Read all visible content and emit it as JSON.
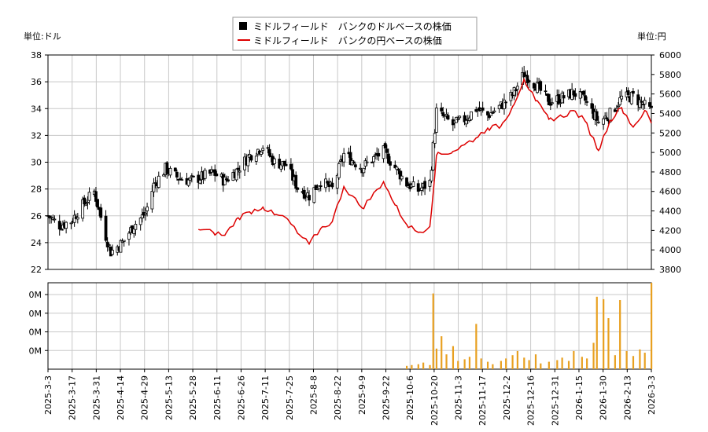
{
  "chart_data": [
    {
      "type": "candlestick",
      "legend": [
        {
          "label": "ミドルフィールド　バンクのドルベースの株価",
          "marker": "square",
          "color": "#000000"
        },
        {
          "label": "ミドルフィールド　バンクの円ベースの株価",
          "marker": "line",
          "color": "#dd0000"
        }
      ],
      "legend_position": "top-center",
      "y_left_unit": "単位:ドル",
      "y_right_unit": "単位:円",
      "y_left_range": [
        22,
        38
      ],
      "y_left_ticks": [
        "22",
        "24",
        "26",
        "28",
        "30",
        "32",
        "34",
        "36",
        "38"
      ],
      "y_right_range": [
        3800,
        6000
      ],
      "y_right_ticks": [
        "3800",
        "4000",
        "4200",
        "4400",
        "4600",
        "4800",
        "5000",
        "5200",
        "5400",
        "5600",
        "5800",
        "6000"
      ],
      "grid": true,
      "x_range": [
        "2025-03-03",
        "2026-03-03"
      ],
      "x_ticks": [
        "2025-3-3",
        "2025-3-17",
        "2025-3-31",
        "2025-4-14",
        "2025-4-29",
        "2025-5-13",
        "2025-5-28",
        "2025-6-11",
        "2025-6-26",
        "2025-7-11",
        "2025-7-25",
        "2025-8-8",
        "2025-8-22",
        "2025-9-9",
        "2025-9-22",
        "2025-10-6",
        "2025-10-20",
        "2025-11-3",
        "2025-11-17",
        "2025-12-2",
        "2025-12-16",
        "2025-12-31",
        "2026-1-15",
        "2026-1-30",
        "2026-2-13",
        "2026-3-3"
      ],
      "price_usd_close": [
        [
          "2025-03-03",
          26.0
        ],
        [
          "2025-03-10",
          25.3
        ],
        [
          "2025-03-17",
          25.6
        ],
        [
          "2025-03-24",
          26.8
        ],
        [
          "2025-03-31",
          27.8
        ],
        [
          "2025-04-07",
          24.5
        ],
        [
          "2025-04-10",
          23.3
        ],
        [
          "2025-04-17",
          24.0
        ],
        [
          "2025-04-24",
          25.3
        ],
        [
          "2025-05-01",
          26.2
        ],
        [
          "2025-05-06",
          28.3
        ],
        [
          "2025-05-13",
          29.5
        ],
        [
          "2025-05-20",
          28.9
        ],
        [
          "2025-05-28",
          28.6
        ],
        [
          "2025-06-04",
          28.9
        ],
        [
          "2025-06-11",
          29.2
        ],
        [
          "2025-06-18",
          28.6
        ],
        [
          "2025-06-26",
          29.5
        ],
        [
          "2025-07-03",
          30.5
        ],
        [
          "2025-07-11",
          31.2
        ],
        [
          "2025-07-18",
          30.0
        ],
        [
          "2025-07-25",
          29.8
        ],
        [
          "2025-08-01",
          28.1
        ],
        [
          "2025-08-08",
          27.5
        ],
        [
          "2025-08-15",
          28.6
        ],
        [
          "2025-08-22",
          28.0
        ],
        [
          "2025-08-29",
          30.6
        ],
        [
          "2025-09-09",
          29.6
        ],
        [
          "2025-09-15",
          30.2
        ],
        [
          "2025-09-22",
          30.8
        ],
        [
          "2025-09-29",
          29.6
        ],
        [
          "2025-10-06",
          28.4
        ],
        [
          "2025-10-13",
          27.9
        ],
        [
          "2025-10-20",
          28.5
        ],
        [
          "2025-10-24",
          33.8
        ],
        [
          "2025-11-03",
          32.8
        ],
        [
          "2025-11-10",
          33.2
        ],
        [
          "2025-11-17",
          34.0
        ],
        [
          "2025-11-24",
          33.5
        ],
        [
          "2025-12-02",
          34.2
        ],
        [
          "2025-12-09",
          35.0
        ],
        [
          "2025-12-16",
          36.6
        ],
        [
          "2025-12-23",
          35.8
        ],
        [
          "2025-12-31",
          34.5
        ],
        [
          "2026-01-08",
          34.8
        ],
        [
          "2026-01-15",
          35.2
        ],
        [
          "2026-01-22",
          34.6
        ],
        [
          "2026-01-30",
          33.0
        ],
        [
          "2026-02-06",
          33.6
        ],
        [
          "2026-02-13",
          34.8
        ],
        [
          "2026-02-20",
          34.9
        ],
        [
          "2026-02-27",
          34.2
        ],
        [
          "2026-03-03",
          33.8
        ]
      ],
      "price_jpy": [
        [
          "2025-06-02",
          4210
        ],
        [
          "2025-06-11",
          4180
        ],
        [
          "2025-06-18",
          4150
        ],
        [
          "2025-06-26",
          4330
        ],
        [
          "2025-07-03",
          4390
        ],
        [
          "2025-07-11",
          4440
        ],
        [
          "2025-07-18",
          4360
        ],
        [
          "2025-07-25",
          4330
        ],
        [
          "2025-08-01",
          4170
        ],
        [
          "2025-08-08",
          4060
        ],
        [
          "2025-08-15",
          4220
        ],
        [
          "2025-08-22",
          4290
        ],
        [
          "2025-08-29",
          4650
        ],
        [
          "2025-09-09",
          4430
        ],
        [
          "2025-09-15",
          4550
        ],
        [
          "2025-09-22",
          4700
        ],
        [
          "2025-09-29",
          4460
        ],
        [
          "2025-10-06",
          4260
        ],
        [
          "2025-10-13",
          4180
        ],
        [
          "2025-10-20",
          4240
        ],
        [
          "2025-10-24",
          4970
        ],
        [
          "2025-11-03",
          5010
        ],
        [
          "2025-11-10",
          5080
        ],
        [
          "2025-11-17",
          5150
        ],
        [
          "2025-11-24",
          5250
        ],
        [
          "2025-12-02",
          5270
        ],
        [
          "2025-12-09",
          5470
        ],
        [
          "2025-12-16",
          5750
        ],
        [
          "2025-12-23",
          5530
        ],
        [
          "2025-12-31",
          5340
        ],
        [
          "2026-01-08",
          5370
        ],
        [
          "2026-01-15",
          5430
        ],
        [
          "2026-01-22",
          5320
        ],
        [
          "2026-01-30",
          5020
        ],
        [
          "2026-02-06",
          5330
        ],
        [
          "2026-02-13",
          5460
        ],
        [
          "2026-02-20",
          5260
        ],
        [
          "2026-02-27",
          5430
        ],
        [
          "2026-03-03",
          5300
        ]
      ]
    },
    {
      "type": "bar",
      "series_name": "volume",
      "y_ticks": [
        "0M",
        "0M",
        "0M",
        "0M"
      ],
      "color": "#e8a020",
      "x_range": [
        "2025-03-03",
        "2026-03-03"
      ],
      "values": [
        [
          "2025-10-06",
          0.04
        ],
        [
          "2025-10-09",
          0.05
        ],
        [
          "2025-10-13",
          0.06
        ],
        [
          "2025-10-16",
          0.08
        ],
        [
          "2025-10-20",
          0.05
        ],
        [
          "2025-10-22",
          0.92
        ],
        [
          "2025-10-24",
          0.25
        ],
        [
          "2025-10-27",
          0.4
        ],
        [
          "2025-10-30",
          0.18
        ],
        [
          "2025-11-03",
          0.28
        ],
        [
          "2025-11-06",
          0.1
        ],
        [
          "2025-11-10",
          0.12
        ],
        [
          "2025-11-13",
          0.15
        ],
        [
          "2025-11-17",
          0.55
        ],
        [
          "2025-11-20",
          0.13
        ],
        [
          "2025-11-24",
          0.09
        ],
        [
          "2025-11-27",
          0.06
        ],
        [
          "2025-12-02",
          0.1
        ],
        [
          "2025-12-05",
          0.13
        ],
        [
          "2025-12-09",
          0.17
        ],
        [
          "2025-12-12",
          0.22
        ],
        [
          "2025-12-16",
          0.14
        ],
        [
          "2025-12-19",
          0.11
        ],
        [
          "2025-12-23",
          0.18
        ],
        [
          "2025-12-26",
          0.07
        ],
        [
          "2025-12-31",
          0.09
        ],
        [
          "2026-01-05",
          0.11
        ],
        [
          "2026-01-08",
          0.14
        ],
        [
          "2026-01-12",
          0.1
        ],
        [
          "2026-01-15",
          0.22
        ],
        [
          "2026-01-20",
          0.15
        ],
        [
          "2026-01-23",
          0.13
        ],
        [
          "2026-01-27",
          0.32
        ],
        [
          "2026-01-29",
          0.88
        ],
        [
          "2026-02-02",
          0.85
        ],
        [
          "2026-02-05",
          0.62
        ],
        [
          "2026-02-09",
          0.17
        ],
        [
          "2026-02-12",
          0.84
        ],
        [
          "2026-02-16",
          0.22
        ],
        [
          "2026-02-20",
          0.16
        ],
        [
          "2026-02-24",
          0.24
        ],
        [
          "2026-02-27",
          0.2
        ],
        [
          "2026-03-03",
          1.05
        ]
      ]
    }
  ]
}
